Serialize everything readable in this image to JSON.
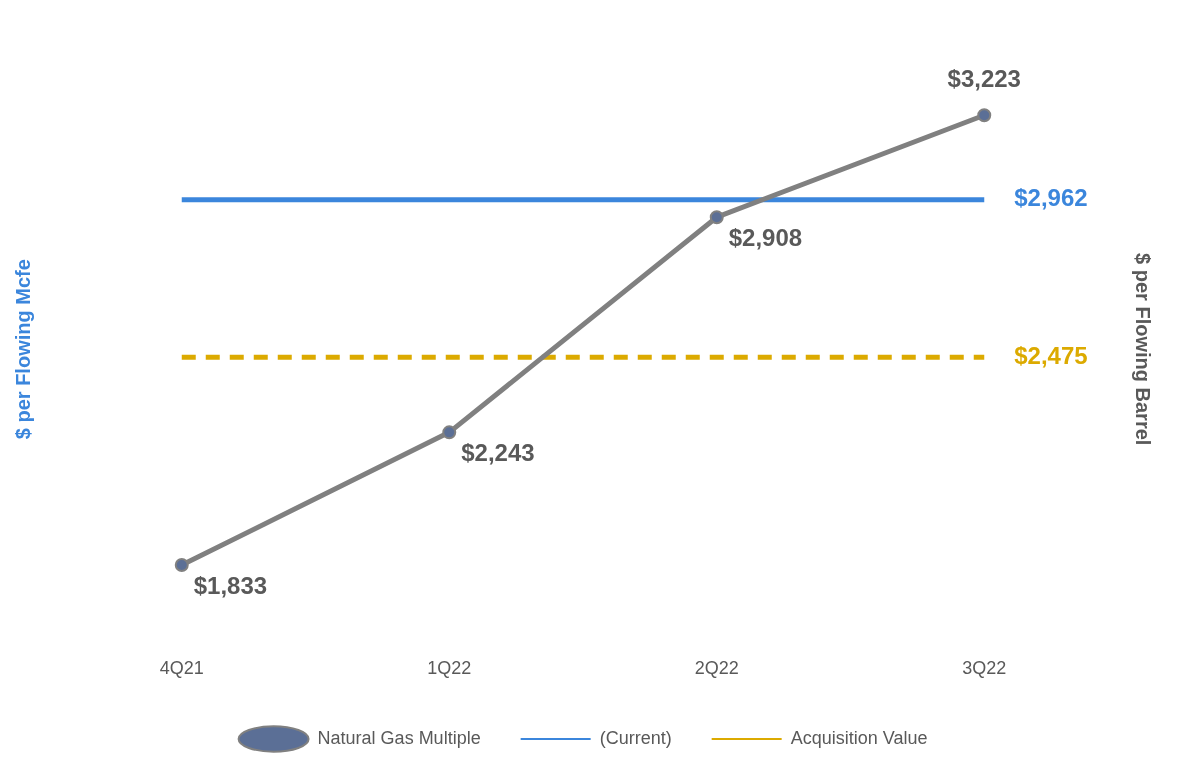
{
  "chart_data": {
    "type": "line",
    "categories": [
      "4Q21",
      "1Q22",
      "2Q22",
      "3Q22"
    ],
    "ylabel": "$ per Flowing Mcfe",
    "y2label": "$ per Flowing Barrel",
    "legend": "bottom",
    "series": [
      {
        "name": "Natural Gas Multiple",
        "color": "#808080",
        "marker": "circle",
        "line_style": "solid",
        "values": [
          1833,
          2243,
          2908,
          3223
        ],
        "value_labels": [
          "$1,833",
          "$2,243",
          "$2,908",
          "$3,223"
        ]
      },
      {
        "name": "(Current)",
        "color": "#3b86dc",
        "marker": "none",
        "line_style": "solid",
        "values": [
          2962,
          2962,
          2962,
          2962
        ],
        "value_labels": [
          null,
          null,
          null,
          "$2,962"
        ]
      },
      {
        "name": "Acquisition Value",
        "color": "#dcaa00",
        "marker": "none",
        "line_style": "dashed",
        "values": [
          2475,
          2475,
          2475,
          2475
        ],
        "value_labels": [
          null,
          null,
          null,
          "$2,475"
        ]
      }
    ]
  }
}
